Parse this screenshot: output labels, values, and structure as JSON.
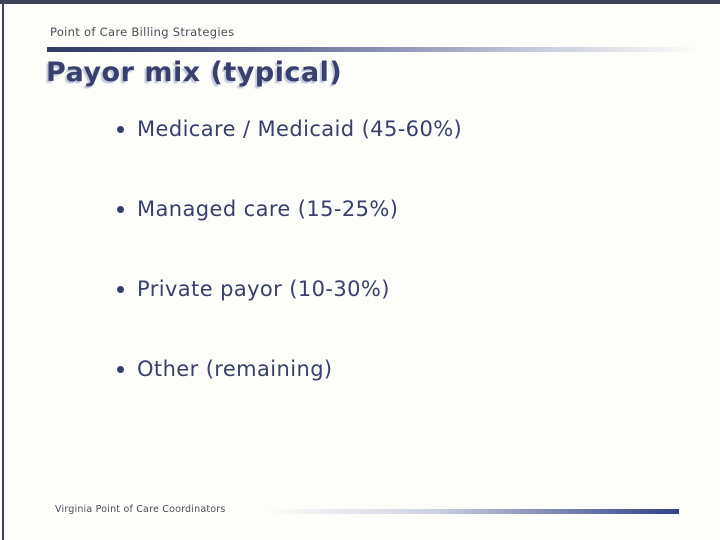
{
  "slide": {
    "header": "Point of Care Billing Strategies",
    "title": "Payor mix (typical)",
    "bullets": [
      "Medicare / Medicaid (45-60%)",
      "Managed care (15-25%)",
      "Private payor (10-30%)",
      "Other (remaining)"
    ],
    "footer": "Virginia Point of Care Coordinators",
    "colors": {
      "navy_text": "#39406d",
      "frame": "#3e4257",
      "rule_dark": "#333a66",
      "footer_rule_end": "#3b4a8f",
      "header_text": "#4a4e57",
      "background": "#fdfdfa"
    }
  }
}
